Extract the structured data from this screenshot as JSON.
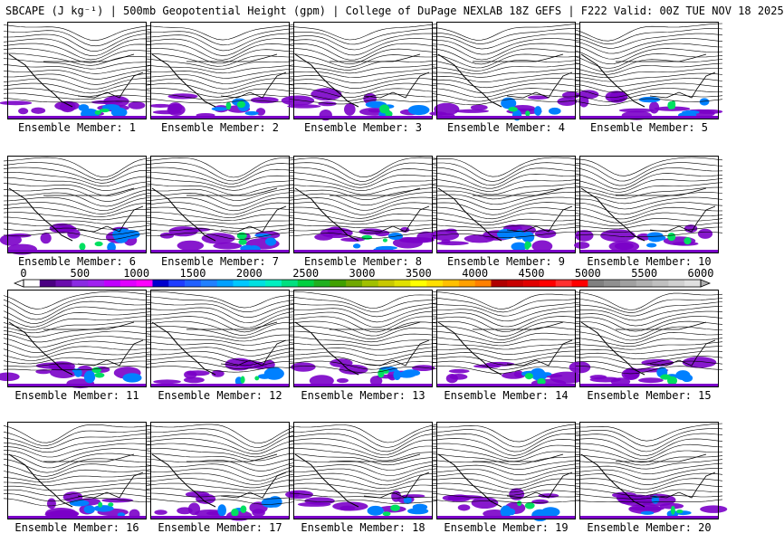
{
  "title": "SBCAPE (J kg⁻¹) | 500mb Geopotential Height (gpm) | College of DuPage NEXLAB 18Z GEFS | F222 Valid: 00Z TUE NOV 18 2025",
  "member_label_prefix": "Ensemble Member: ",
  "members": [
    {
      "label": "Ensemble Member: 1"
    },
    {
      "label": "Ensemble Member: 2"
    },
    {
      "label": "Ensemble Member: 3"
    },
    {
      "label": "Ensemble Member: 4"
    },
    {
      "label": "Ensemble Member: 5"
    },
    {
      "label": "Ensemble Member: 6"
    },
    {
      "label": "Ensemble Member: 7"
    },
    {
      "label": "Ensemble Member: 8"
    },
    {
      "label": "Ensemble Member: 9"
    },
    {
      "label": "Ensemble Member: 10"
    },
    {
      "label": "Ensemble Member: 11"
    },
    {
      "label": "Ensemble Member: 12"
    },
    {
      "label": "Ensemble Member: 13"
    },
    {
      "label": "Ensemble Member: 14"
    },
    {
      "label": "Ensemble Member: 15"
    },
    {
      "label": "Ensemble Member: 16"
    },
    {
      "label": "Ensemble Member: 17"
    },
    {
      "label": "Ensemble Member: 18"
    },
    {
      "label": "Ensemble Member: 19"
    },
    {
      "label": "Ensemble Member: 20"
    }
  ],
  "colorbar": {
    "tick_labels": [
      "0",
      "500",
      "1000",
      "1500",
      "2000",
      "2500",
      "3000",
      "3500",
      "4000",
      "4500",
      "5000",
      "5500",
      "6000"
    ],
    "min": 0,
    "max": 6000,
    "colors": [
      "#ffffff",
      "#4b0082",
      "#6a0dad",
      "#8a2be2",
      "#a020f0",
      "#c000ff",
      "#e000ff",
      "#ff00ff",
      "#0000cd",
      "#1e3cff",
      "#2060ff",
      "#2080ff",
      "#00a0ff",
      "#00c8ff",
      "#00e0e0",
      "#00f0c0",
      "#00e080",
      "#00d040",
      "#20b020",
      "#40a000",
      "#70a800",
      "#a0c000",
      "#c8c800",
      "#e0e000",
      "#ffff00",
      "#ffe000",
      "#ffc000",
      "#ffa000",
      "#ff8000",
      "#b00000",
      "#c80000",
      "#e00000",
      "#ff0000",
      "#ff3030",
      "#ff0000",
      "#808080",
      "#909090",
      "#a0a0a0",
      "#b0b0b0",
      "#c0c0c0",
      "#d0d0d0",
      "#e0e0e0"
    ],
    "border_color": "#000000"
  },
  "style_colors": {
    "contour": "#000000",
    "cape_low": "#7a00c8",
    "cape_mid": "#0080ff",
    "cape_high": "#00e060"
  }
}
